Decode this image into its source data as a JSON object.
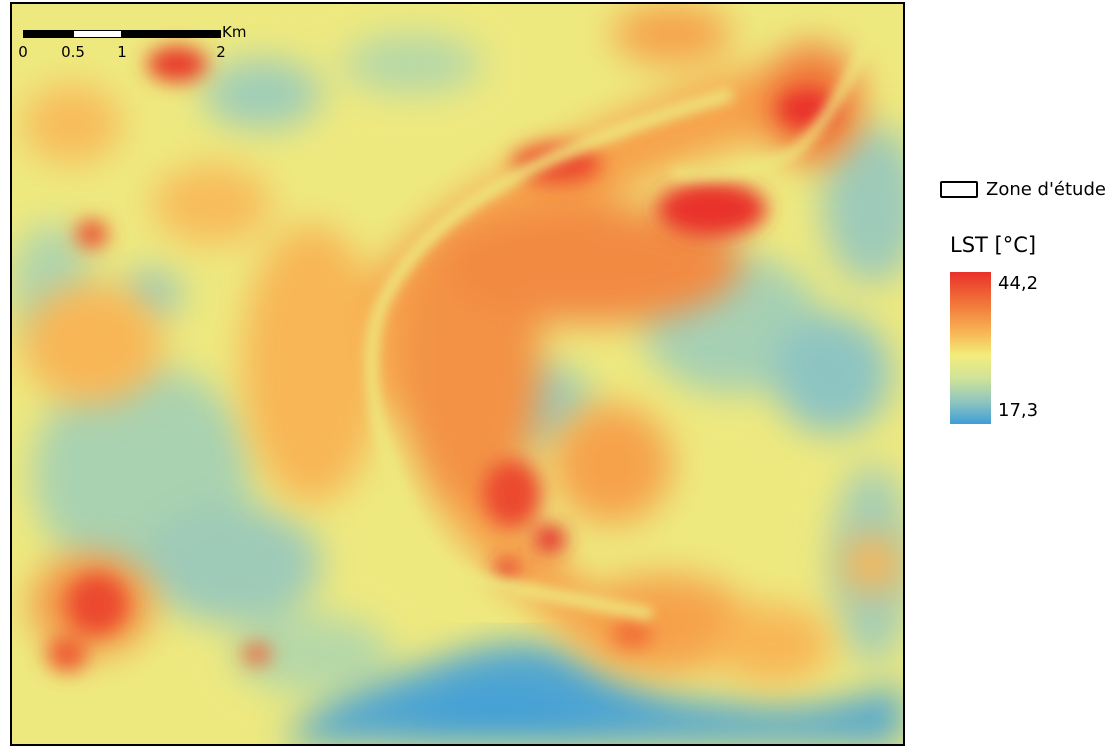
{
  "scalebar": {
    "unit": "Km",
    "labels": [
      "0",
      "0.5",
      "1",
      "2"
    ]
  },
  "legend": {
    "zone_label": "Zone d'étude",
    "lst_title": "LST [°C]",
    "max_label": "44,2",
    "min_label": "17,3"
  },
  "colors": {
    "hot": "#e9312a",
    "warm": "#f6a24c",
    "mid": "#f3ed7c",
    "cool": "#8cc4c0",
    "cold": "#3d9ed8"
  }
}
